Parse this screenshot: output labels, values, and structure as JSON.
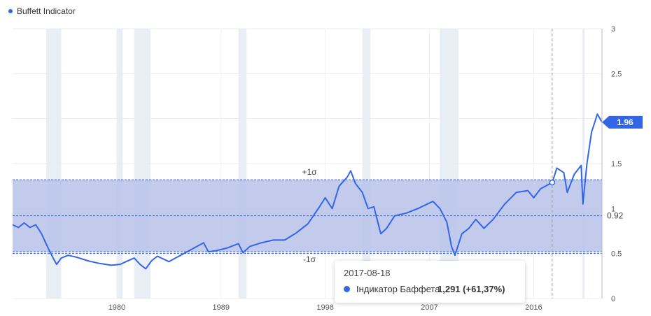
{
  "legend": {
    "label": "Buffett Indicator",
    "color": "#3366e6"
  },
  "tooltip": {
    "date": "2017-08-18",
    "series_label": "Індикатор Баффета",
    "value": "1,291 (+61,37%)"
  },
  "current_badge": "1.96",
  "band_labels": {
    "plus": "+1σ",
    "minus": "-1σ",
    "mean": "0.92"
  },
  "colors": {
    "line": "#3366e6",
    "band_fill": "#b7c2e9",
    "recession": "#e9eef4",
    "badge": "#3366e6"
  },
  "chart_data": {
    "type": "line",
    "title": "",
    "xlabel": "",
    "ylabel": "",
    "x_ticks": [
      "1980",
      "1989",
      "1998",
      "2007",
      "2016"
    ],
    "y_ticks": [
      "0",
      "0.5",
      "1",
      "1.5",
      "2",
      "2.5",
      "3"
    ],
    "ylim": [
      0,
      3
    ],
    "xlim": [
      1971.0,
      2021.9
    ],
    "band": {
      "upper": 1.32,
      "lower": 0.52,
      "mean": 0.92
    },
    "recessions": [
      [
        1973.9,
        1975.2
      ],
      [
        1980.0,
        1980.5
      ],
      [
        1981.5,
        1982.9
      ],
      [
        1990.5,
        1991.2
      ],
      [
        2001.2,
        2001.9
      ],
      [
        2007.9,
        2009.5
      ],
      [
        2020.2,
        2020.4
      ]
    ],
    "crosshair_x": 2017.6,
    "series": [
      {
        "name": "Buffett Indicator",
        "points": [
          [
            1971.0,
            0.82
          ],
          [
            1971.5,
            0.79
          ],
          [
            1972.0,
            0.84
          ],
          [
            1972.5,
            0.79
          ],
          [
            1973.0,
            0.82
          ],
          [
            1973.5,
            0.72
          ],
          [
            1974.0,
            0.58
          ],
          [
            1974.5,
            0.45
          ],
          [
            1974.8,
            0.38
          ],
          [
            1975.2,
            0.45
          ],
          [
            1975.8,
            0.48
          ],
          [
            1976.5,
            0.46
          ],
          [
            1977.5,
            0.42
          ],
          [
            1978.5,
            0.39
          ],
          [
            1979.5,
            0.37
          ],
          [
            1980.3,
            0.38
          ],
          [
            1980.8,
            0.41
          ],
          [
            1981.5,
            0.45
          ],
          [
            1982.0,
            0.38
          ],
          [
            1982.5,
            0.33
          ],
          [
            1983.0,
            0.42
          ],
          [
            1983.5,
            0.47
          ],
          [
            1984.5,
            0.41
          ],
          [
            1985.5,
            0.48
          ],
          [
            1986.5,
            0.55
          ],
          [
            1987.5,
            0.62
          ],
          [
            1987.9,
            0.52
          ],
          [
            1988.5,
            0.53
          ],
          [
            1989.5,
            0.56
          ],
          [
            1990.5,
            0.61
          ],
          [
            1990.9,
            0.51
          ],
          [
            1991.5,
            0.58
          ],
          [
            1992.5,
            0.62
          ],
          [
            1993.5,
            0.65
          ],
          [
            1994.5,
            0.65
          ],
          [
            1995.5,
            0.73
          ],
          [
            1996.5,
            0.83
          ],
          [
            1997.5,
            1.02
          ],
          [
            1998.0,
            1.12
          ],
          [
            1998.6,
            1.0
          ],
          [
            1999.2,
            1.25
          ],
          [
            1999.9,
            1.35
          ],
          [
            2000.2,
            1.42
          ],
          [
            2000.6,
            1.28
          ],
          [
            2001.2,
            1.18
          ],
          [
            2001.7,
            1.0
          ],
          [
            2002.2,
            1.02
          ],
          [
            2002.8,
            0.72
          ],
          [
            2003.3,
            0.78
          ],
          [
            2004.0,
            0.92
          ],
          [
            2005.0,
            0.95
          ],
          [
            2006.0,
            1.0
          ],
          [
            2007.3,
            1.08
          ],
          [
            2007.9,
            1.0
          ],
          [
            2008.5,
            0.85
          ],
          [
            2008.9,
            0.58
          ],
          [
            2009.2,
            0.48
          ],
          [
            2009.8,
            0.72
          ],
          [
            2010.4,
            0.78
          ],
          [
            2011.0,
            0.88
          ],
          [
            2011.7,
            0.78
          ],
          [
            2012.5,
            0.88
          ],
          [
            2013.5,
            1.05
          ],
          [
            2014.5,
            1.18
          ],
          [
            2015.5,
            1.2
          ],
          [
            2016.0,
            1.12
          ],
          [
            2016.6,
            1.22
          ],
          [
            2017.6,
            1.29
          ],
          [
            2018.0,
            1.45
          ],
          [
            2018.6,
            1.4
          ],
          [
            2018.9,
            1.18
          ],
          [
            2019.5,
            1.38
          ],
          [
            2020.1,
            1.48
          ],
          [
            2020.25,
            1.05
          ],
          [
            2020.6,
            1.5
          ],
          [
            2021.0,
            1.85
          ],
          [
            2021.5,
            2.05
          ],
          [
            2021.9,
            1.96
          ]
        ]
      }
    ]
  }
}
